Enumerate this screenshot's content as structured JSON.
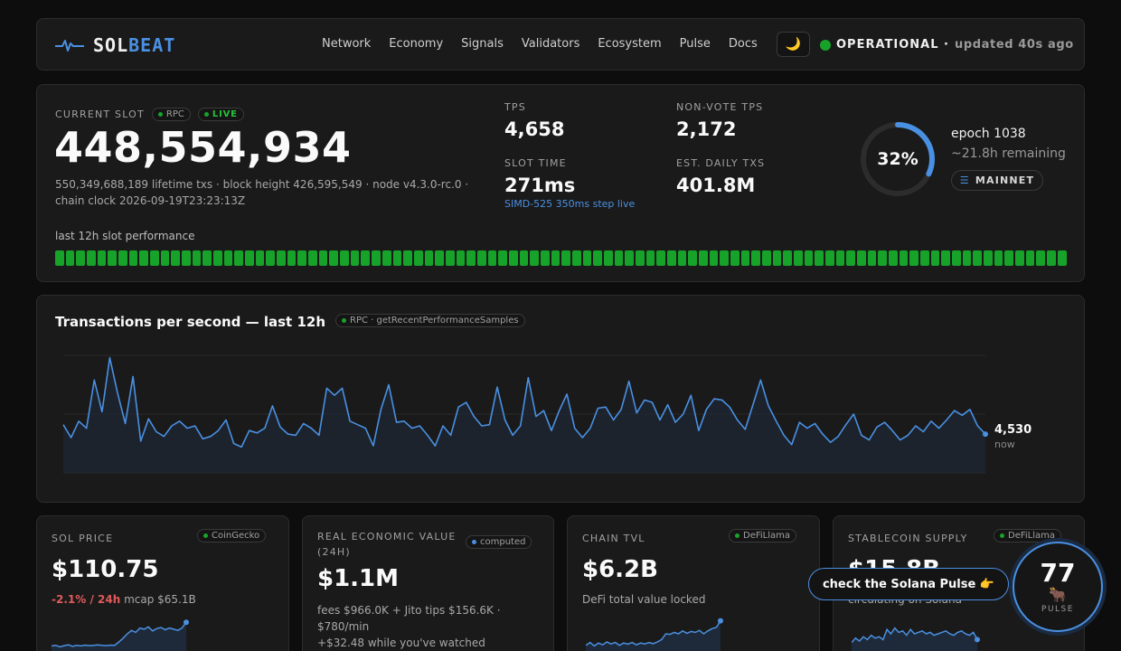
{
  "header": {
    "logo_sol": "SOL",
    "logo_beat": "BEAT",
    "nav": [
      "Network",
      "Economy",
      "Signals",
      "Validators",
      "Ecosystem",
      "Pulse",
      "Docs"
    ],
    "theme_icon": "🌙",
    "status": "OPERATIONAL ·",
    "updated": "updated 40s ago",
    "status_color": "#17a22a"
  },
  "slot": {
    "label": "CURRENT SLOT",
    "rpc_pill": "RPC",
    "live_pill": "LIVE",
    "current_slot": "448,554,934",
    "sub_line1": "550,349,688,189 lifetime txs · block height 426,595,549 · node v4.3.0-rc.0 ·",
    "sub_line2": "chain clock 2026-09-19T23:23:13Z",
    "tps_label": "TPS",
    "tps_value": "4,658",
    "nonvote_label": "NON-VOTE TPS",
    "nonvote_value": "2,172",
    "slottime_label": "SLOT TIME",
    "slottime_value": "271ms",
    "simd_note": "SIMD-525 350ms step live",
    "daily_label": "EST. DAILY TXS",
    "daily_value": "401.8M",
    "epoch_progress_text": "32%",
    "epoch_progress": 0.32,
    "epoch": "epoch 1038",
    "epoch_remaining": "~21.8h remaining",
    "network_icon": "☰",
    "network": "MAINNET",
    "perf_label": "last 12h slot performance",
    "perf_bar_count": 96,
    "perf_color": "#17a22a"
  },
  "tps_chart": {
    "title": "Transactions per second — last 12h",
    "source_pill": "RPC · getRecentPerformanceSamples",
    "now_value": "4,530",
    "now_label": "now",
    "line_color": "#4a90e2"
  },
  "chart_data": {
    "type": "line",
    "title": "Transactions per second — last 12h",
    "xlabel": "",
    "ylabel": "",
    "grid": true,
    "x": [
      0,
      1,
      2,
      3,
      4,
      5,
      6,
      7,
      8,
      9,
      10,
      11,
      12,
      13,
      14,
      15,
      16,
      17,
      18,
      19,
      20,
      21,
      22,
      23,
      24,
      25,
      26,
      27,
      28,
      29,
      30,
      31,
      32,
      33,
      34,
      35,
      36,
      37,
      38,
      39,
      40,
      41,
      42,
      43,
      44,
      45,
      46,
      47,
      48,
      49,
      50,
      51,
      52,
      53,
      54,
      55,
      56,
      57,
      58,
      59,
      60,
      61,
      62,
      63,
      64,
      65,
      66,
      67,
      68,
      69,
      70,
      71,
      72,
      73,
      74,
      75,
      76,
      77,
      78,
      79,
      80,
      81,
      82,
      83,
      84,
      85,
      86,
      87,
      88,
      89,
      90,
      91,
      92,
      93,
      94,
      95,
      96,
      97,
      98,
      99,
      100,
      101,
      102,
      103,
      104,
      105,
      106,
      107,
      108,
      109,
      110,
      111,
      112,
      113,
      114,
      115,
      116,
      117,
      118,
      119
    ],
    "values": [
      4610,
      4500,
      4640,
      4580,
      4990,
      4720,
      5180,
      4880,
      4620,
      5020,
      4470,
      4660,
      4550,
      4510,
      4600,
      4640,
      4580,
      4600,
      4490,
      4510,
      4560,
      4650,
      4450,
      4420,
      4560,
      4540,
      4580,
      4770,
      4590,
      4530,
      4520,
      4620,
      4580,
      4520,
      4920,
      4860,
      4920,
      4640,
      4610,
      4580,
      4430,
      4740,
      4950,
      4630,
      4640,
      4580,
      4600,
      4520,
      4430,
      4600,
      4520,
      4760,
      4800,
      4680,
      4600,
      4610,
      4930,
      4650,
      4520,
      4600,
      5010,
      4680,
      4730,
      4560,
      4730,
      4870,
      4580,
      4500,
      4580,
      4750,
      4760,
      4650,
      4740,
      4980,
      4710,
      4820,
      4800,
      4650,
      4780,
      4630,
      4700,
      4860,
      4560,
      4740,
      4830,
      4820,
      4760,
      4650,
      4570,
      4780,
      4990,
      4770,
      4640,
      4520,
      4440,
      4630,
      4580,
      4620,
      4530,
      4460,
      4510,
      4610,
      4700,
      4520,
      4480,
      4590,
      4630,
      4560,
      4480,
      4520,
      4600,
      4550,
      4640,
      4580,
      4650,
      4730,
      4690,
      4740,
      4600,
      4530
    ],
    "ylim": [
      4200,
      5200
    ]
  },
  "cards": [
    {
      "label": "SOL PRICE",
      "source": "CoinGecko",
      "value": "$110.75",
      "change": "-2.1% / 24h",
      "sub": "mcap $65.1B"
    },
    {
      "label_line1": "REAL ECONOMIC VALUE",
      "label_line2": "(24H)",
      "source": "computed",
      "value": "$1.1M",
      "sub_line1": "fees $966.0K + Jito tips $156.6K ·",
      "sub_line2": "$780/min",
      "sub_line3": "+$32.48 while you've watched"
    },
    {
      "label": "CHAIN TVL",
      "source": "DeFiLlama",
      "value": "$6.2B",
      "sub": "DeFi total value locked"
    },
    {
      "label": "STABLECOIN SUPPLY",
      "source": "DeFiLlama",
      "value": "$15.8B",
      "sub": "circulating on Solana"
    }
  ],
  "sparklines": {
    "sol_price": [
      0.08,
      0.1,
      0.05,
      0.09,
      0.12,
      0.07,
      0.1,
      0.08,
      0.11,
      0.09,
      0.1,
      0.12,
      0.1,
      0.09,
      0.11,
      0.1,
      0.22,
      0.35,
      0.5,
      0.62,
      0.55,
      0.7,
      0.66,
      0.74,
      0.6,
      0.68,
      0.72,
      0.64,
      0.7,
      0.66,
      0.62,
      0.7,
      0.9
    ],
    "chain_tvl": [
      0.1,
      0.2,
      0.08,
      0.18,
      0.12,
      0.22,
      0.15,
      0.2,
      0.1,
      0.18,
      0.14,
      0.2,
      0.12,
      0.18,
      0.15,
      0.2,
      0.16,
      0.22,
      0.3,
      0.5,
      0.48,
      0.55,
      0.5,
      0.6,
      0.52,
      0.58,
      0.55,
      0.62,
      0.5,
      0.6,
      0.68,
      0.72,
      0.95
    ],
    "stablecoin": [
      0.2,
      0.35,
      0.25,
      0.4,
      0.3,
      0.45,
      0.35,
      0.4,
      0.3,
      0.65,
      0.5,
      0.7,
      0.55,
      0.6,
      0.45,
      0.65,
      0.5,
      0.55,
      0.6,
      0.5,
      0.55,
      0.45,
      0.5,
      0.55,
      0.6,
      0.5,
      0.45,
      0.55,
      0.6,
      0.5,
      0.45,
      0.55,
      0.3
    ]
  },
  "pulse": {
    "cta": "check the Solana Pulse 👉",
    "score": "77",
    "icon": "🐂",
    "label": "PULSE"
  }
}
